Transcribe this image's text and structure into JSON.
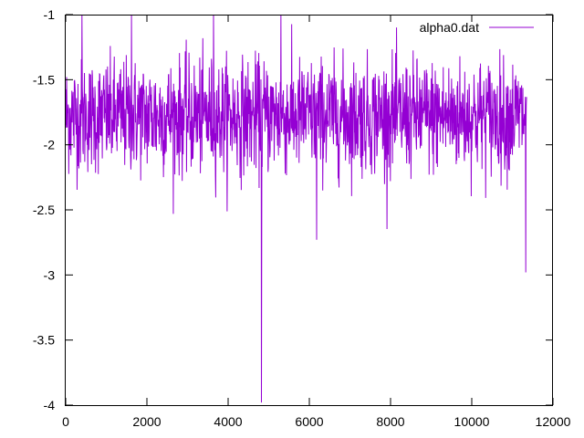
{
  "chart_data": {
    "type": "line",
    "title": "",
    "xlabel": "",
    "ylabel": "",
    "xlim": [
      0,
      12000
    ],
    "ylim": [
      -4,
      -1
    ],
    "x_ticks": [
      0,
      2000,
      4000,
      6000,
      8000,
      10000,
      12000
    ],
    "y_ticks": [
      -1,
      -1.5,
      -2,
      -2.5,
      -3,
      -3.5,
      -4
    ],
    "x_tick_labels": [
      "0",
      "2000",
      "4000",
      "6000",
      "8000",
      "10000",
      "12000"
    ],
    "y_tick_labels": [
      "-1",
      "-1.5",
      "-2",
      "-2.5",
      "-3",
      "-3.5",
      "-4"
    ],
    "grid": false,
    "legend": {
      "position": "top-right"
    },
    "series": [
      {
        "name": "alpha0.dat",
        "color": "#9400d3",
        "x_range": [
          0,
          11350
        ],
        "mean": -1.78,
        "typical_band": [
          -2.15,
          -1.4
        ],
        "notable_points": [
          {
            "x": 400,
            "y": -1.0
          },
          {
            "x": 1620,
            "y": -1.0
          },
          {
            "x": 3640,
            "y": -1.0
          },
          {
            "x": 4820,
            "y": -3.98
          },
          {
            "x": 5300,
            "y": -1.0
          },
          {
            "x": 6180,
            "y": -2.73
          },
          {
            "x": 11330,
            "y": -2.98
          }
        ]
      }
    ]
  }
}
